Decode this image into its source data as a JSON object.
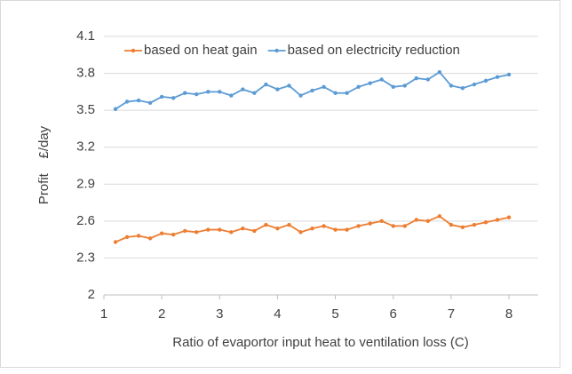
{
  "chart_data": {
    "type": "line",
    "y_label": "Profit    £/day",
    "x_label": "Ratio of evaportor input heat to ventilation loss (C)",
    "x": [
      1.2,
      1.4,
      1.6,
      1.8,
      2.0,
      2.2,
      2.4,
      2.6,
      2.8,
      3.0,
      3.2,
      3.4,
      3.6,
      3.8,
      4.0,
      4.2,
      4.4,
      4.6,
      4.8,
      5.0,
      5.2,
      5.4,
      5.6,
      5.8,
      6.0,
      6.2,
      6.4,
      6.6,
      6.8,
      7.0,
      7.2,
      7.4,
      7.6,
      7.8,
      8.0
    ],
    "series": [
      {
        "name": "based on heat gain",
        "color": "#ed7d31",
        "values": [
          2.43,
          2.47,
          2.48,
          2.46,
          2.5,
          2.49,
          2.52,
          2.51,
          2.53,
          2.53,
          2.51,
          2.54,
          2.52,
          2.57,
          2.54,
          2.57,
          2.51,
          2.54,
          2.56,
          2.53,
          2.53,
          2.56,
          2.58,
          2.6,
          2.56,
          2.56,
          2.61,
          2.6,
          2.64,
          2.57,
          2.55,
          2.57,
          2.59,
          2.61,
          2.63
        ]
      },
      {
        "name": "based on electricity reduction",
        "color": "#5b9bd5",
        "values": [
          3.51,
          3.57,
          3.58,
          3.56,
          3.61,
          3.6,
          3.64,
          3.63,
          3.65,
          3.65,
          3.62,
          3.67,
          3.64,
          3.71,
          3.67,
          3.7,
          3.62,
          3.66,
          3.69,
          3.64,
          3.64,
          3.69,
          3.72,
          3.75,
          3.69,
          3.7,
          3.76,
          3.75,
          3.81,
          3.7,
          3.68,
          3.71,
          3.74,
          3.77,
          3.79
        ]
      }
    ],
    "xlim": [
      1,
      8.5
    ],
    "xticks": [
      1,
      2,
      3,
      4,
      5,
      6,
      7,
      8
    ],
    "ylim": [
      2,
      4.1
    ],
    "yticks": [
      2,
      2.3,
      2.6,
      2.9,
      3.2,
      3.5,
      3.8,
      4.1
    ],
    "grid": true,
    "legend": "top"
  }
}
